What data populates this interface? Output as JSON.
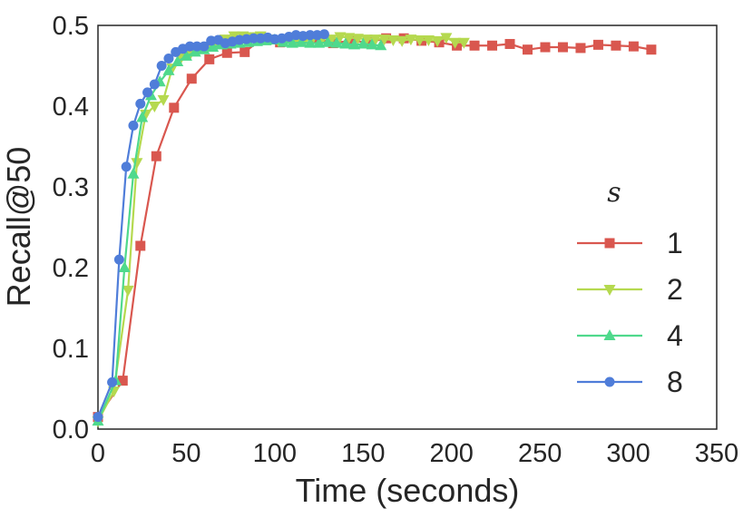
{
  "chart_data": {
    "type": "line",
    "xlabel": "Time (seconds)",
    "ylabel": "Recall@50",
    "xlim": [
      0,
      350
    ],
    "ylim": [
      0.0,
      0.5
    ],
    "xticks": [
      0,
      50,
      100,
      150,
      200,
      250,
      300,
      350
    ],
    "yticks": [
      0.0,
      0.1,
      0.2,
      0.3,
      0.4,
      0.5
    ],
    "xtick_labels": [
      "0",
      "50",
      "100",
      "150",
      "200",
      "250",
      "300",
      "350"
    ],
    "ytick_labels": [
      "0.0",
      "0.1",
      "0.2",
      "0.3",
      "0.4",
      "0.5"
    ],
    "grid": false,
    "legend": {
      "title": "s",
      "position": "center-right"
    },
    "series": [
      {
        "name": "1",
        "color": "#d9574f",
        "marker": "square",
        "x": [
          0,
          14,
          24,
          33,
          43,
          53,
          63,
          73,
          83,
          93,
          103,
          113,
          123,
          133,
          143,
          153,
          163,
          173,
          183,
          193,
          203,
          213,
          223,
          233,
          243,
          253,
          263,
          273,
          283,
          293,
          303,
          313
        ],
        "y": [
          0.015,
          0.06,
          0.227,
          0.338,
          0.398,
          0.434,
          0.458,
          0.466,
          0.467,
          0.484,
          0.479,
          0.481,
          0.484,
          0.478,
          0.481,
          0.479,
          0.484,
          0.484,
          0.481,
          0.479,
          0.475,
          0.475,
          0.475,
          0.477,
          0.47,
          0.473,
          0.473,
          0.472,
          0.476,
          0.475,
          0.474,
          0.47
        ]
      },
      {
        "name": "2",
        "color": "#b5d94f",
        "marker": "triangle-down",
        "x": [
          0,
          9,
          17,
          22,
          27,
          32,
          37,
          42,
          47,
          52,
          57,
          62,
          67,
          72,
          77,
          82,
          87,
          92,
          97,
          102,
          107,
          112,
          117,
          122,
          127,
          132,
          137,
          142,
          147,
          152,
          157,
          162,
          167,
          172,
          177,
          182,
          187,
          192,
          197,
          202,
          207
        ],
        "y": [
          0.01,
          0.047,
          0.172,
          0.33,
          0.39,
          0.4,
          0.408,
          0.447,
          0.46,
          0.464,
          0.472,
          0.474,
          0.476,
          0.483,
          0.487,
          0.487,
          0.486,
          0.487,
          0.483,
          0.481,
          0.483,
          0.48,
          0.482,
          0.486,
          0.484,
          0.483,
          0.486,
          0.485,
          0.484,
          0.483,
          0.483,
          0.483,
          0.482,
          0.481,
          0.483,
          0.482,
          0.482,
          0.481,
          0.485,
          0.479,
          0.479
        ]
      },
      {
        "name": "4",
        "color": "#4fd98c",
        "marker": "triangle-up",
        "x": [
          0,
          10,
          15,
          20,
          25,
          30,
          35,
          40,
          45,
          50,
          55,
          60,
          65,
          70,
          75,
          80,
          85,
          90,
          95,
          100,
          105,
          110,
          115,
          120,
          125,
          130,
          135,
          140,
          145,
          150,
          155,
          160
        ],
        "y": [
          0.01,
          0.06,
          0.2,
          0.316,
          0.386,
          0.413,
          0.43,
          0.444,
          0.455,
          0.462,
          0.467,
          0.47,
          0.473,
          0.476,
          0.477,
          0.478,
          0.479,
          0.48,
          0.481,
          0.482,
          0.479,
          0.478,
          0.479,
          0.478,
          0.478,
          0.479,
          0.478,
          0.477,
          0.476,
          0.477,
          0.476,
          0.475
        ]
      },
      {
        "name": "8",
        "color": "#4f7dd9",
        "marker": "circle",
        "x": [
          0,
          8,
          12,
          16,
          20,
          24,
          28,
          32,
          36,
          40,
          44,
          48,
          52,
          56,
          60,
          64,
          68,
          72,
          76,
          80,
          84,
          88,
          92,
          96,
          100,
          104,
          108,
          112,
          116,
          120,
          124,
          128
        ],
        "y": [
          0.015,
          0.058,
          0.21,
          0.325,
          0.376,
          0.403,
          0.417,
          0.427,
          0.45,
          0.459,
          0.467,
          0.471,
          0.474,
          0.474,
          0.474,
          0.481,
          0.482,
          0.478,
          0.48,
          0.482,
          0.483,
          0.484,
          0.484,
          0.485,
          0.483,
          0.484,
          0.486,
          0.488,
          0.487,
          0.488,
          0.488,
          0.489
        ]
      }
    ]
  }
}
